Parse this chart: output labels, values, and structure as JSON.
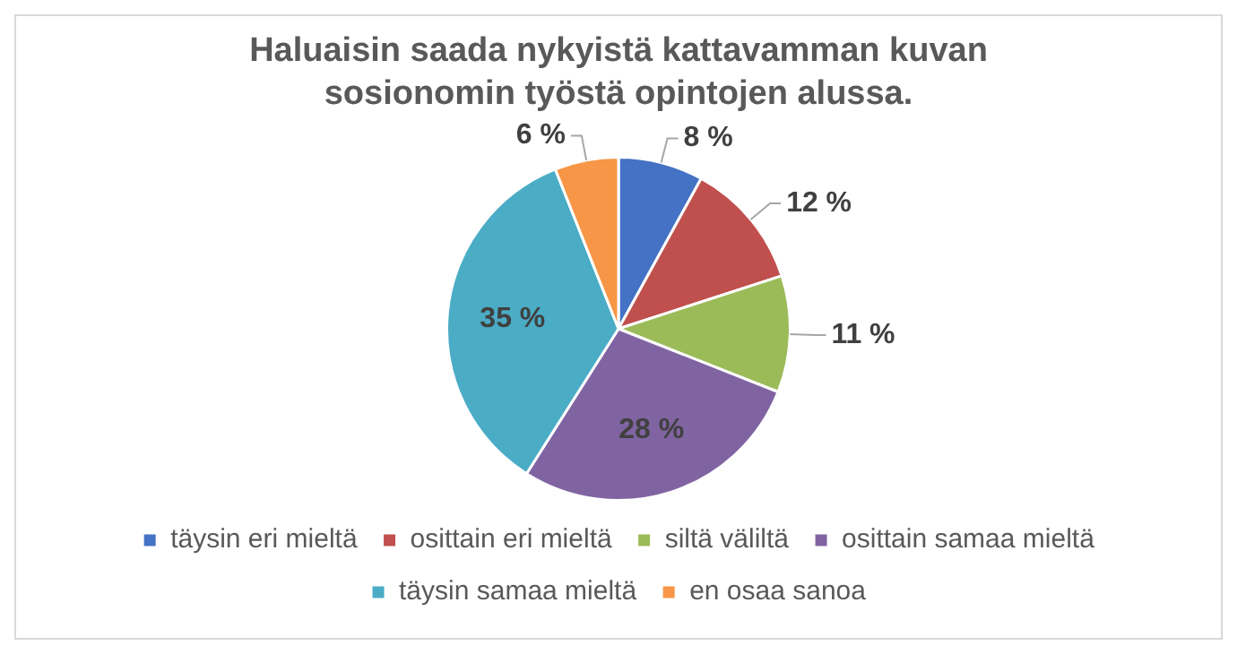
{
  "chart_data": {
    "type": "pie",
    "title": "Haluaisin saada nykyistä kattavamman kuvan sosionomin työstä opintojen alussa.",
    "categories": [
      "täysin eri mieltä",
      "osittain eri mieltä",
      "siltä väliltä",
      "osittain samaa mieltä",
      "täysin samaa mieltä",
      "en osaa sanoa"
    ],
    "values": [
      8,
      12,
      11,
      28,
      35,
      6
    ],
    "colors": [
      "#4472c4",
      "#c0504d",
      "#9bbb59",
      "#8064a2",
      "#4bacc6",
      "#f79646"
    ],
    "value_labels": [
      "8 %",
      "12 %",
      "11 %",
      "28 %",
      "35 %",
      "6 %"
    ],
    "legend": "bottom"
  }
}
